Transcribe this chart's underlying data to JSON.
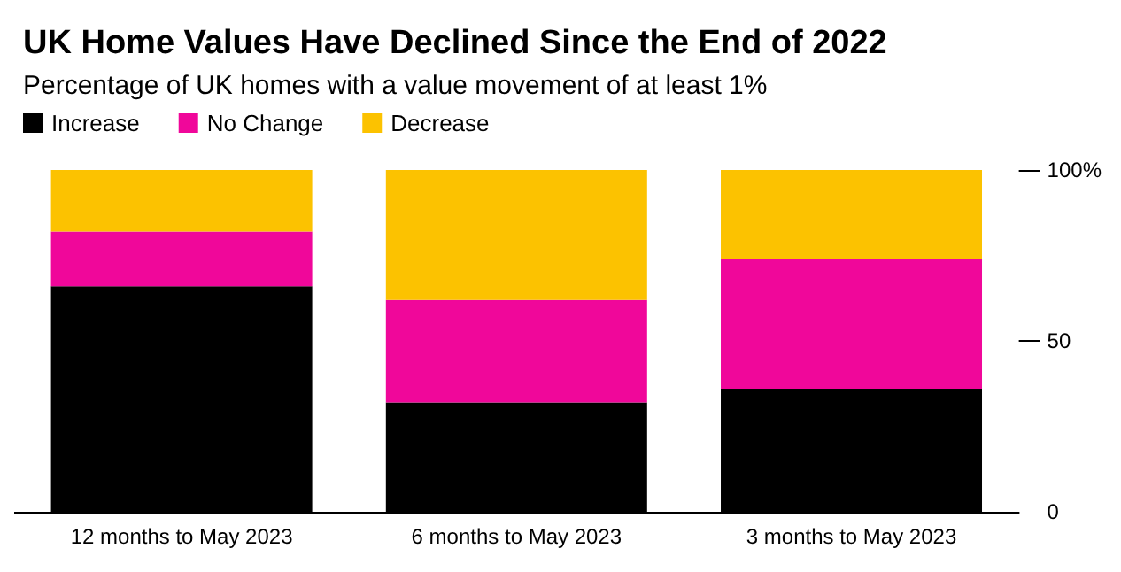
{
  "chart_data": {
    "type": "bar",
    "title": "UK Home Values Have Declined Since the End of 2022",
    "subtitle": "Percentage of UK homes with a value movement of at least 1%",
    "categories": [
      "12 months to May 2023",
      "6 months to May 2023",
      "3 months to May 2023"
    ],
    "stacked": true,
    "series": [
      {
        "name": "Increase",
        "color": "#000000",
        "values": [
          66,
          32,
          36
        ]
      },
      {
        "name": "No Change",
        "color": "#f0079a",
        "values": [
          16,
          30,
          38
        ]
      },
      {
        "name": "Decrease",
        "color": "#fcc200",
        "values": [
          18,
          38,
          26
        ]
      }
    ],
    "ylim": [
      0,
      100
    ],
    "yticks": [
      0,
      50,
      {
        "value": 100,
        "label": "100%"
      }
    ],
    "grid": false,
    "legend": "top left"
  }
}
